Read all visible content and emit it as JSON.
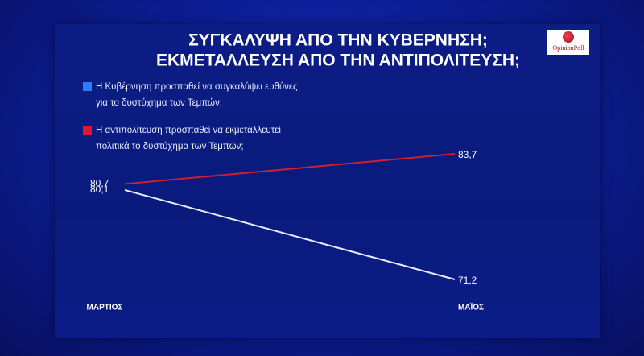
{
  "chart_data": {
    "type": "line",
    "title": "ΣΥΓΚΑΛΥΨΗ ΑΠΟ ΤΗΝ ΚΥΒΕΡΝΗΣΗ;",
    "subtitle": "ΕΚΜΕΤΑΛΛΕΥΣΗ ΑΠΟ ΤΗΝ ΑΝΤΙΠΟΛΙΤΕΥΣΗ;",
    "categories": [
      "ΜΑΡΤΙΟΣ",
      "ΜΑΪΟΣ"
    ],
    "series": [
      {
        "name": "Η Κυβέρνηση προσπαθεί να συγκαλύψει ευθύνες για το δυστύχημα των Τεμπών;",
        "color": "#2f7bff",
        "line_color": "#e8ecff",
        "values": [
          80.1,
          71.2
        ],
        "value_labels": [
          "80,1",
          "71,2"
        ]
      },
      {
        "name": "Η αντιπολίτευση προσπαθεί να εκμεταλλευτεί πολιτικά το δυστύχημα των Τεμπών;",
        "color": "#e0182d",
        "line_color": "#d0202e",
        "values": [
          80.7,
          83.7
        ],
        "value_labels": [
          "80,7",
          "83,7"
        ]
      }
    ]
  },
  "logo": "OpinionPoll"
}
